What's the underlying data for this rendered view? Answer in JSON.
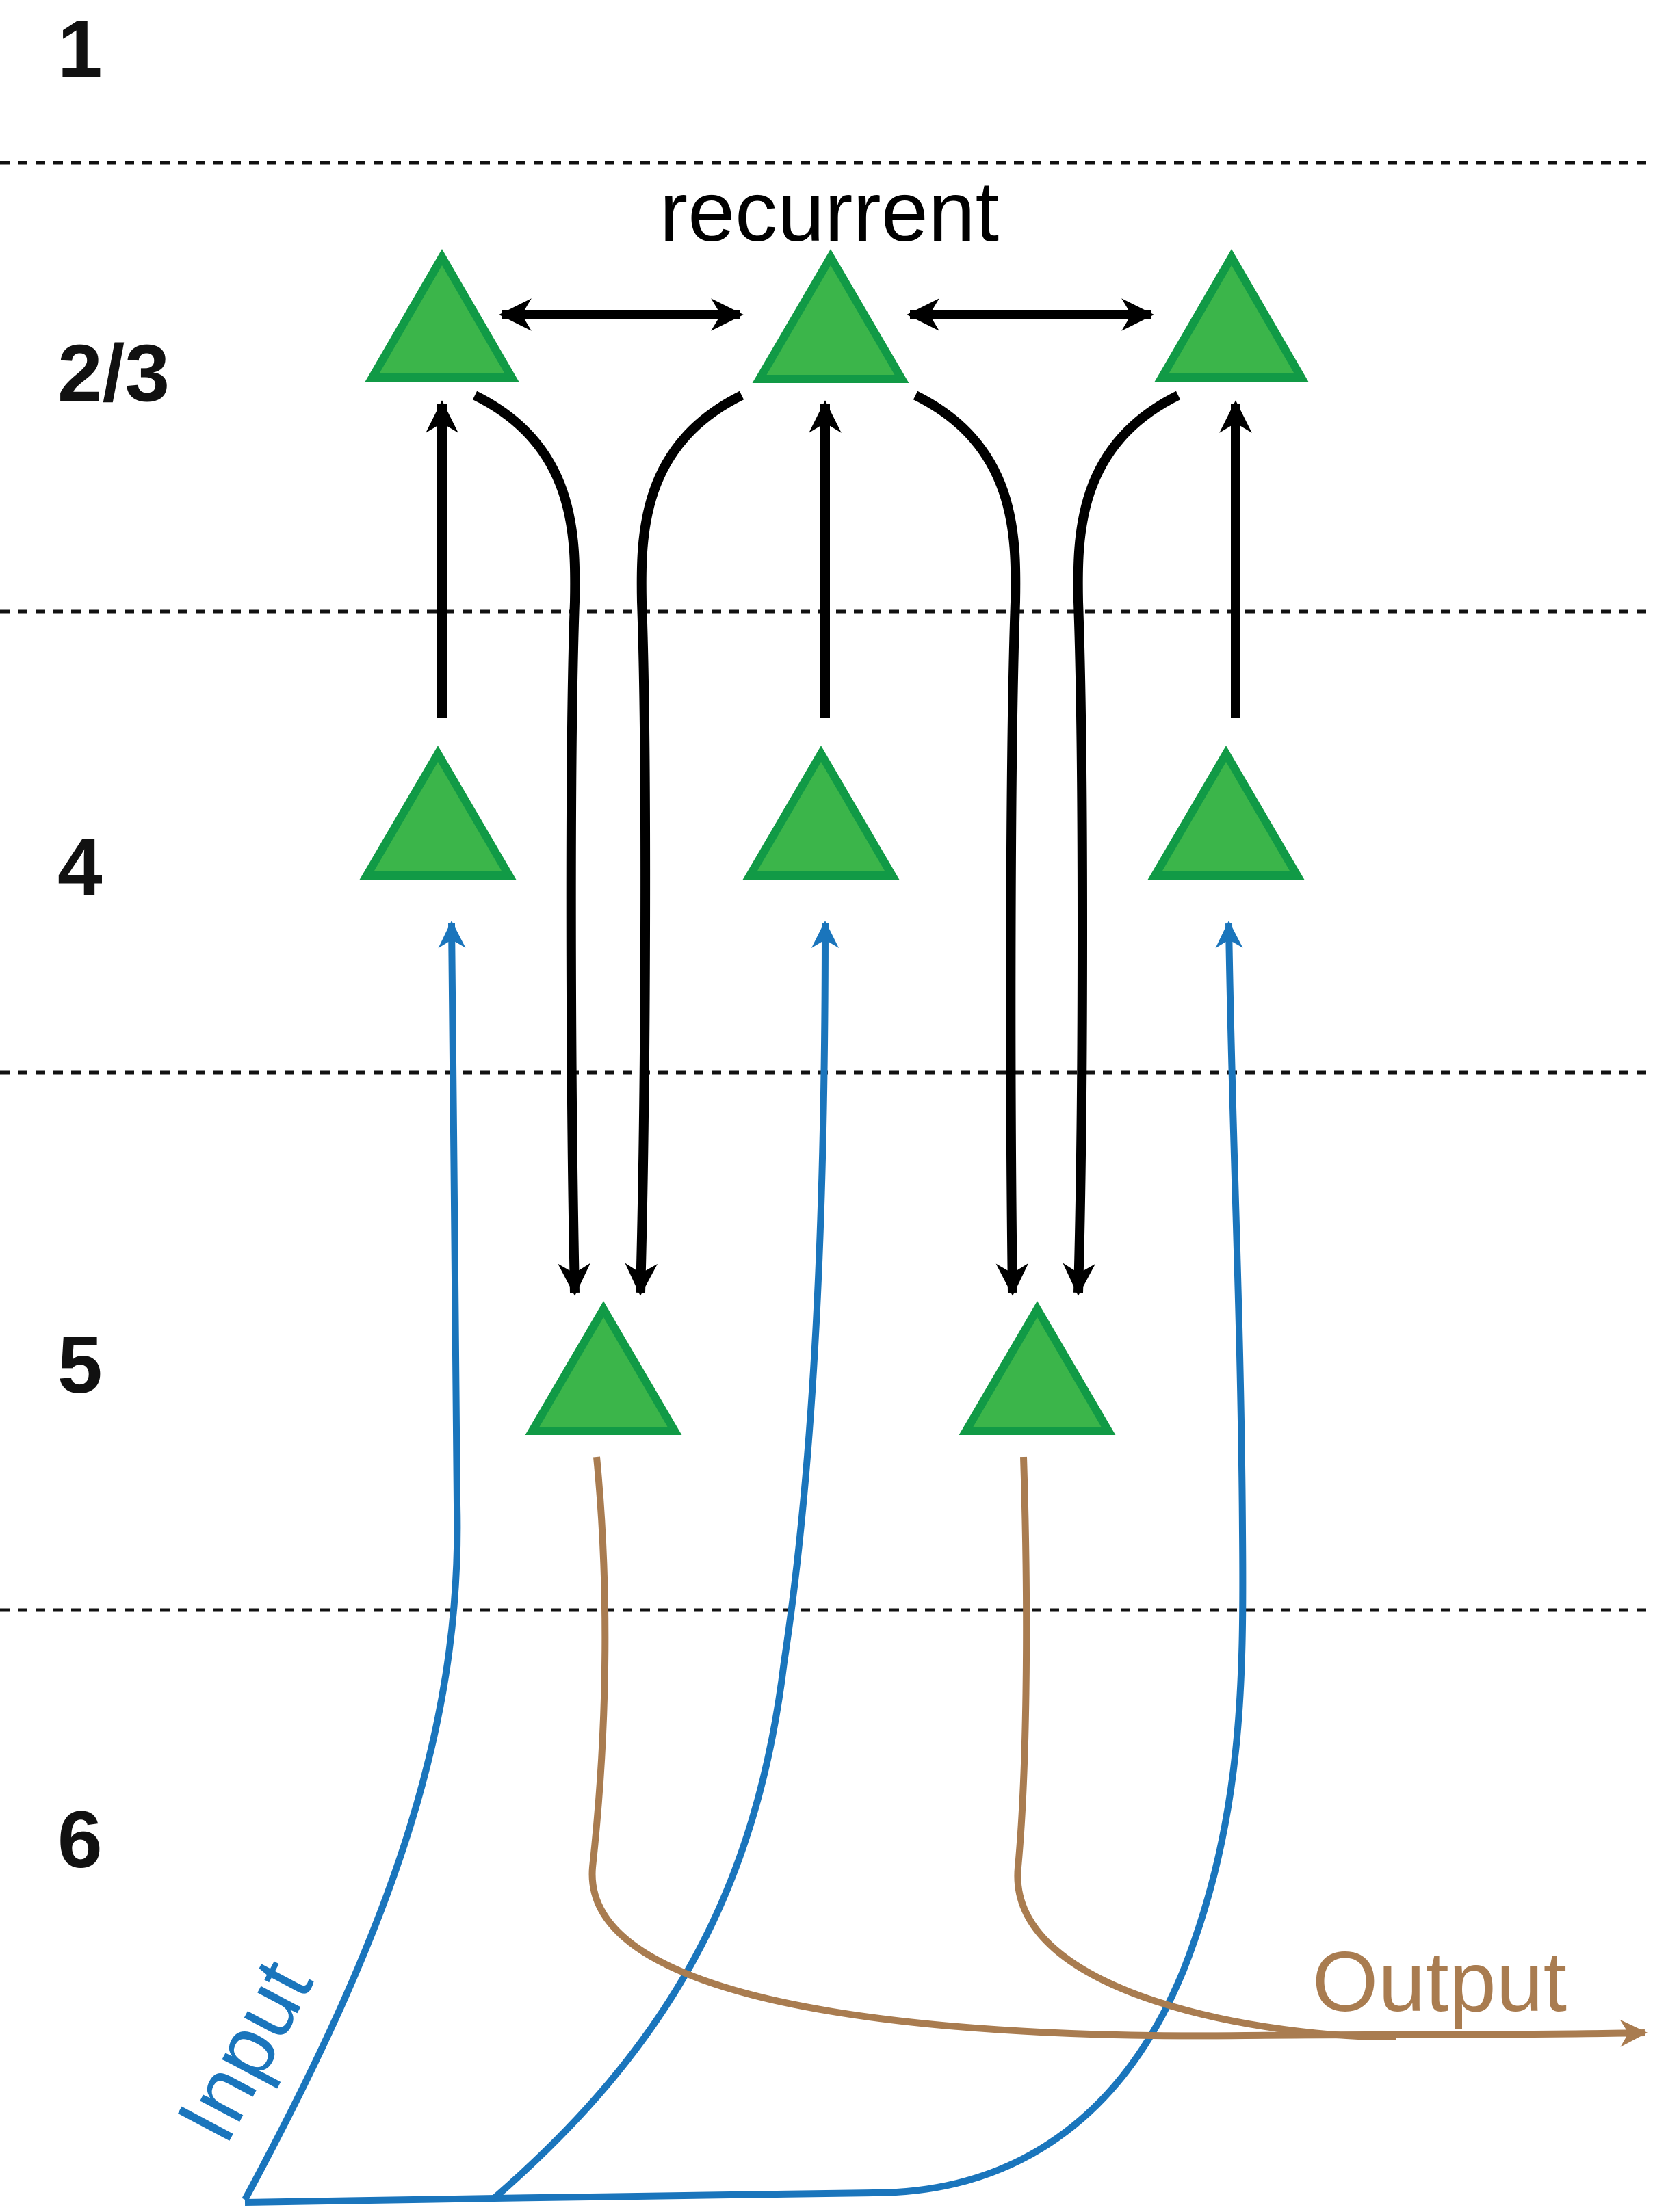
{
  "layers": {
    "l1": "1",
    "l23": "2/3",
    "l4": "4",
    "l5": "5",
    "l6": "6"
  },
  "labels": {
    "recurrent": "recurrent",
    "input": "Input",
    "output": "Output"
  },
  "colors": {
    "neuron_fill": "#3bb54a",
    "neuron_stroke": "#119a46",
    "connection": "#000000",
    "input": "#1a75bc",
    "output": "#a97c50"
  }
}
